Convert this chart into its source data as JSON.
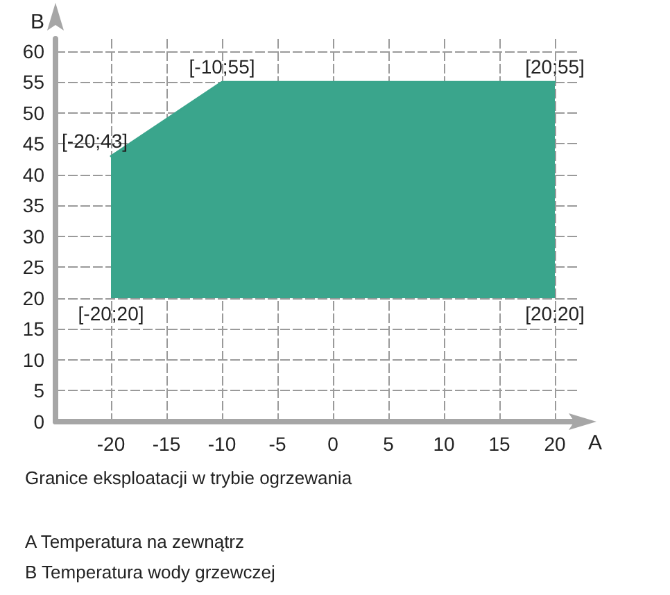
{
  "chart_data": {
    "type": "line",
    "xlabel": "A",
    "ylabel": "B",
    "x": [
      -20,
      -10,
      20
    ],
    "series": [
      {
        "color": "#3aa58c",
        "values": [
          43,
          55,
          55
        ],
        "lower": [
          20,
          20,
          20
        ],
        "upper": [
          43,
          55,
          55
        ]
      }
    ],
    "xlim": [
      -25,
      22
    ],
    "ylim": [
      0,
      62
    ],
    "xticks": [
      -20,
      -15,
      -10,
      -5,
      0,
      5,
      10,
      15,
      20
    ],
    "yticks": [
      0,
      5,
      10,
      15,
      20,
      25,
      30,
      35,
      40,
      45,
      50,
      55,
      60
    ],
    "grid": true,
    "annotations": [
      {
        "text": "[-20;43]",
        "x": -20,
        "y": 43
      },
      {
        "text": "[-10;55]",
        "x": -10,
        "y": 55
      },
      {
        "text": "[20;55]",
        "x": 20,
        "y": 55
      },
      {
        "text": "[-20;20]",
        "x": -20,
        "y": 20
      },
      {
        "text": "[20;20]",
        "x": 20,
        "y": 20
      },
      "Granice eksploatacji w trybie ogrzewania",
      "A Temperatura na zewnątrz",
      "B Temperatura wody grzewczej"
    ]
  }
}
